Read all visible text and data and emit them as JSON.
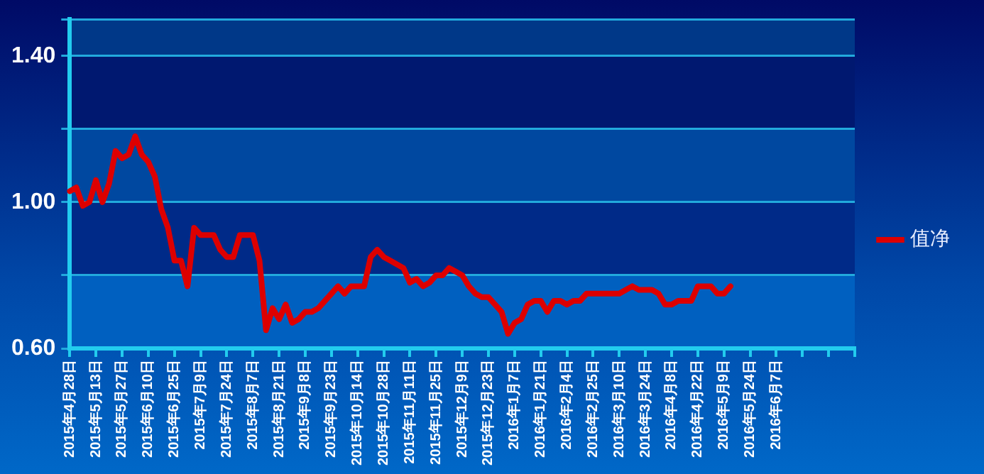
{
  "chart_data": {
    "type": "line",
    "categories": [
      "2015年4月28日",
      null,
      null,
      null,
      "2015年5月13日",
      null,
      null,
      null,
      "2015年5月27日",
      null,
      null,
      null,
      "2015年6月10日",
      null,
      null,
      null,
      "2015年6月25日",
      null,
      null,
      null,
      "2015年7月9日",
      null,
      null,
      null,
      "2015年7月24日",
      null,
      null,
      null,
      "2015年8月7日",
      null,
      null,
      null,
      "2015年8月21日",
      null,
      null,
      null,
      "2015年9月8日",
      null,
      null,
      null,
      "2015年9月23日",
      null,
      null,
      null,
      "2015年10月14日",
      null,
      null,
      null,
      "2015年10月28日",
      null,
      null,
      null,
      "2015年11月11日",
      null,
      null,
      null,
      "2015年11月25日",
      null,
      null,
      null,
      "2015年12月9日",
      null,
      null,
      null,
      "2015年12月23日",
      null,
      null,
      null,
      "2016年1月7日",
      null,
      null,
      null,
      "2016年1月21日",
      null,
      null,
      null,
      "2016年2月4日",
      null,
      null,
      null,
      "2016年2月25日",
      null,
      null,
      null,
      "2016年3月10日",
      null,
      null,
      null,
      "2016年3月24日",
      null,
      null,
      null,
      "2016年4月8日",
      null,
      null,
      null,
      "2016年4月22日",
      null,
      null,
      null,
      "2016年5月9日",
      null,
      null,
      null,
      "2016年5月24日",
      null,
      null,
      null,
      "2016年6月7日",
      null,
      null,
      null,
      null,
      null,
      null,
      null,
      null,
      null,
      null,
      null,
      null
    ],
    "series": [
      {
        "name": "值净",
        "color": "#dd0000",
        "values": [
          1.03,
          1.04,
          0.99,
          1.0,
          1.06,
          1.0,
          1.05,
          1.14,
          1.12,
          1.13,
          1.18,
          1.13,
          1.11,
          1.07,
          0.98,
          0.93,
          0.84,
          0.84,
          0.77,
          0.93,
          0.91,
          0.91,
          0.91,
          0.87,
          0.85,
          0.85,
          0.91,
          0.91,
          0.91,
          0.84,
          0.65,
          0.71,
          0.68,
          0.72,
          0.67,
          0.68,
          0.7,
          0.7,
          0.71,
          0.73,
          0.75,
          0.77,
          0.75,
          0.77,
          0.77,
          0.77,
          0.85,
          0.87,
          0.85,
          0.84,
          0.83,
          0.82,
          0.78,
          0.79,
          0.77,
          0.78,
          0.8,
          0.8,
          0.82,
          0.81,
          0.8,
          0.77,
          0.75,
          0.74,
          0.74,
          0.72,
          0.7,
          0.64,
          0.67,
          0.68,
          0.72,
          0.73,
          0.73,
          0.7,
          0.73,
          0.73,
          0.72,
          0.73,
          0.73,
          0.75,
          0.75,
          0.75,
          0.75,
          0.75,
          0.75,
          0.76,
          0.77,
          0.76,
          0.76,
          0.76,
          0.75,
          0.72,
          0.72,
          0.73,
          0.73,
          0.73,
          0.77,
          0.77,
          0.77,
          0.75,
          0.75,
          0.77,
          null,
          null,
          null,
          null,
          null,
          null,
          null,
          null,
          null,
          null,
          null,
          null,
          null,
          null,
          null,
          null,
          null,
          null,
          null
        ]
      }
    ],
    "ylim": [
      0.6,
      1.5
    ],
    "yticks": [
      {
        "value": 0.6,
        "label": "0.60"
      },
      {
        "value": 0.8,
        "label": null
      },
      {
        "value": 1.0,
        "label": "1.00"
      },
      {
        "value": 1.2,
        "label": null
      },
      {
        "value": 1.4,
        "label": "1.40"
      },
      {
        "value": 1.5,
        "label": null
      }
    ],
    "bands": [
      {
        "axis": "y",
        "from": 0.6,
        "to": 0.8,
        "color": "#0060c0"
      },
      {
        "axis": "y",
        "from": 0.8,
        "to": 1.0,
        "color": "#002a88"
      },
      {
        "axis": "y",
        "from": 1.0,
        "to": 1.2,
        "color": "#0048a0"
      },
      {
        "axis": "y",
        "from": 1.2,
        "to": 1.4,
        "color": "#001870"
      },
      {
        "axis": "y",
        "from": 1.4,
        "to": 1.5,
        "color": "#003888"
      }
    ],
    "grid": "y",
    "legend": "right",
    "marker": "none",
    "line_style": "solid"
  }
}
